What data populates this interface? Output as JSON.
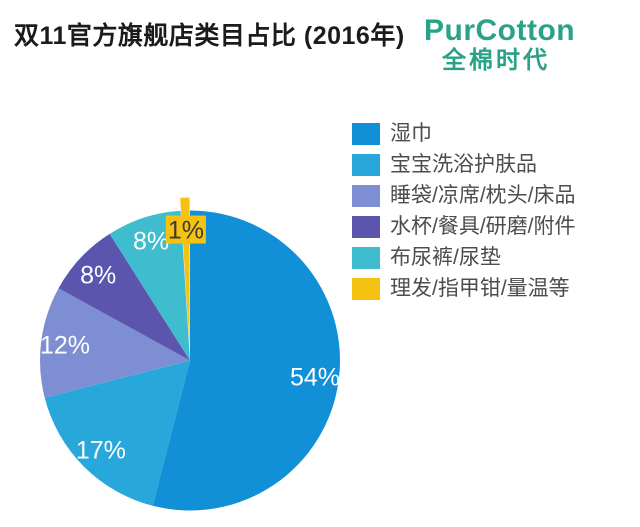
{
  "header": {
    "title": "双11官方旗舰店类目占比 (2016年)",
    "logo": {
      "brand": "PurCotton",
      "brand_cn": "全棉时代",
      "color": "#2aa287"
    }
  },
  "chart_data": {
    "type": "pie",
    "title": "双11官方旗舰店类目占比 (2016年)",
    "categories": [
      "湿巾",
      "宝宝洗浴护肤品",
      "睡袋/凉席/枕头/床品",
      "水杯/餐具/研磨/附件",
      "布尿裤/尿垫",
      "理发/指甲钳/量温等"
    ],
    "values": [
      54,
      17,
      12,
      8,
      8,
      1
    ],
    "unit": "%",
    "slice_labels": [
      "54%",
      "17%",
      "12%",
      "8%",
      "8%",
      "1%"
    ],
    "colors": [
      "#1190d8",
      "#28a7db",
      "#7d8fd2",
      "#5b55ae",
      "#3fbdcf",
      "#f6c211"
    ],
    "label_colors": {
      "light": "#ffffff",
      "dark": "#3b3b3b"
    },
    "legend_text_color": "#4d4d4d",
    "legend_position": "right",
    "start_angle_deg": 0,
    "clockwise": true
  }
}
